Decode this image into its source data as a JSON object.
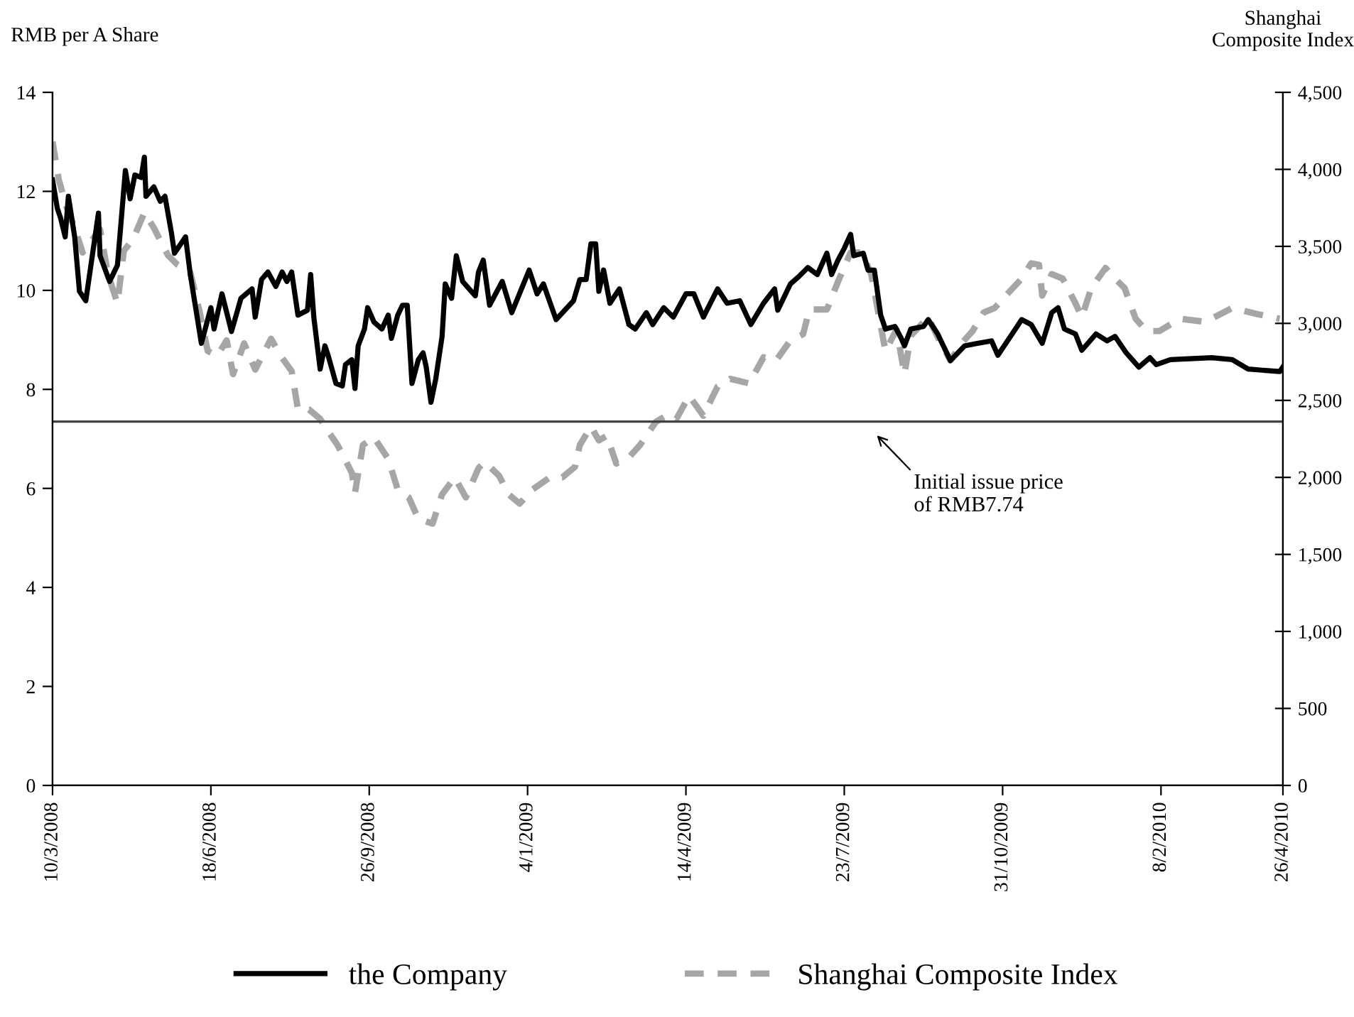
{
  "chart_data": {
    "type": "line",
    "ylabel": "RMB per A Share",
    "y2label": "Shanghai\nComposite Index",
    "xlim": [
      "2008-03-10",
      "2010-04-26"
    ],
    "xticks": [
      {
        "value": "2008-03-10",
        "label": "10/3/2008"
      },
      {
        "value": "2008-06-18",
        "label": "18/6/2008"
      },
      {
        "value": "2008-09-26",
        "label": "26/9/2008"
      },
      {
        "value": "2009-01-04",
        "label": "4/1/2009"
      },
      {
        "value": "2009-04-14",
        "label": "14/4/2009"
      },
      {
        "value": "2009-07-23",
        "label": "23/7/2009"
      },
      {
        "value": "2009-10-31",
        "label": "31/10/2009"
      },
      {
        "value": "2010-02-08",
        "label": "8/2/2010"
      },
      {
        "value": "2010-04-26",
        "label": "26/4/2010"
      }
    ],
    "ylim": [
      0,
      14
    ],
    "yticks": [
      0,
      2,
      4,
      6,
      8,
      10,
      12,
      14
    ],
    "y2lim": [
      0,
      4500
    ],
    "y2ticks": [
      0,
      500,
      {
        "value": 1000,
        "label": "1,000"
      },
      {
        "value": 1500,
        "label": "1,500"
      },
      {
        "value": 2000,
        "label": "2,000"
      },
      {
        "value": 2500,
        "label": "2,500"
      },
      {
        "value": 3000,
        "label": "3,000"
      },
      {
        "value": 3500,
        "label": "3,500"
      },
      {
        "value": 4000,
        "label": "4,000"
      },
      {
        "value": 4500,
        "label": "4,500"
      }
    ],
    "grid": false,
    "legend": "bottom",
    "ref_lines": [
      {
        "axis": "y",
        "value": 7.35,
        "color": "#404040",
        "line_style": "solid"
      }
    ],
    "annotations": [
      "Initial issue price\nof RMB7.74"
    ],
    "series": [
      {
        "name": "the Company",
        "color": "#000000",
        "line_style": "solid",
        "x": [
          "2008-03-10",
          "2008-03-13",
          "2008-03-15",
          "2008-03-18",
          "2008-03-20",
          "2008-03-24",
          "2008-03-27",
          "2008-03-31",
          "2008-04-08",
          "2008-04-09",
          "2008-04-15",
          "2008-04-20",
          "2008-04-25",
          "2008-04-28",
          "2008-05-01",
          "2008-05-05",
          "2008-05-07",
          "2008-05-08",
          "2008-05-13",
          "2008-05-17",
          "2008-05-20",
          "2008-05-24",
          "2008-05-26",
          "2008-06-02",
          "2008-06-05",
          "2008-06-12",
          "2008-06-18",
          "2008-06-20",
          "2008-06-25",
          "2008-07-01",
          "2008-07-07",
          "2008-07-14",
          "2008-07-16",
          "2008-07-20",
          "2008-07-24",
          "2008-07-29",
          "2008-08-02",
          "2008-08-05",
          "2008-08-08",
          "2008-08-12",
          "2008-08-18",
          "2008-08-20",
          "2008-08-22",
          "2008-08-26",
          "2008-08-29",
          "2008-08-31",
          "2008-09-05",
          "2008-09-09",
          "2008-09-11",
          "2008-09-15",
          "2008-09-17",
          "2008-09-19",
          "2008-09-23",
          "2008-09-25",
          "2008-09-29",
          "2008-10-04",
          "2008-10-08",
          "2008-10-10",
          "2008-10-14",
          "2008-10-17",
          "2008-10-20",
          "2008-10-23",
          "2008-10-27",
          "2008-10-30",
          "2008-11-01",
          "2008-11-04",
          "2008-11-07",
          "2008-11-11",
          "2008-11-13",
          "2008-11-17",
          "2008-11-20",
          "2008-11-24",
          "2008-12-02",
          "2008-12-04",
          "2008-12-07",
          "2008-12-11",
          "2008-12-19",
          "2008-12-25",
          "2009-01-05",
          "2009-01-10",
          "2009-01-14",
          "2009-01-22",
          "2009-02-02",
          "2009-02-06",
          "2009-02-10",
          "2009-02-13",
          "2009-02-16",
          "2009-02-18",
          "2009-02-21",
          "2009-02-25",
          "2009-03-03",
          "2009-03-09",
          "2009-03-13",
          "2009-03-20",
          "2009-03-24",
          "2009-03-31",
          "2009-04-06",
          "2009-04-14",
          "2009-04-19",
          "2009-04-25",
          "2009-05-04",
          "2009-05-10",
          "2009-05-18",
          "2009-05-25",
          "2009-06-02",
          "2009-06-09",
          "2009-06-11",
          "2009-06-19",
          "2009-06-24",
          "2009-06-30",
          "2009-07-06",
          "2009-07-12",
          "2009-07-15",
          "2009-07-19",
          "2009-07-23",
          "2009-07-27",
          "2009-07-29",
          "2009-08-04",
          "2009-08-07",
          "2009-08-11",
          "2009-08-15",
          "2009-08-18",
          "2009-08-24",
          "2009-08-28",
          "2009-08-30",
          "2009-09-03",
          "2009-09-11",
          "2009-09-14",
          "2009-09-20",
          "2009-09-28",
          "2009-10-07",
          "2009-10-15",
          "2009-10-24",
          "2009-10-28",
          "2009-11-02",
          "2009-11-06",
          "2009-11-12",
          "2009-11-18",
          "2009-11-25",
          "2009-12-01",
          "2009-12-05",
          "2009-12-09",
          "2009-12-16",
          "2009-12-20",
          "2009-12-29",
          "2010-01-05",
          "2010-01-10",
          "2010-01-17",
          "2010-01-25",
          "2010-02-01",
          "2010-02-05",
          "2010-02-14",
          "2010-03-12",
          "2010-03-25",
          "2010-04-04",
          "2010-04-24",
          "2010-04-26"
        ],
        "values": [
          12.23,
          11.66,
          11.47,
          11.08,
          11.9,
          11.08,
          9.98,
          9.79,
          11.56,
          10.7,
          10.18,
          10.51,
          12.42,
          11.85,
          12.33,
          12.28,
          12.69,
          11.9,
          12.09,
          11.8,
          11.9,
          11.18,
          10.75,
          11.08,
          10.32,
          8.93,
          9.65,
          9.22,
          9.93,
          9.17,
          9.84,
          10.03,
          9.46,
          10.22,
          10.37,
          10.08,
          10.37,
          10.18,
          10.37,
          9.5,
          9.6,
          10.32,
          9.46,
          8.41,
          8.88,
          8.69,
          8.12,
          8.07,
          8.5,
          8.6,
          8.02,
          8.88,
          9.22,
          9.65,
          9.36,
          9.22,
          9.5,
          9.03,
          9.5,
          9.7,
          9.7,
          8.12,
          8.6,
          8.74,
          8.45,
          7.74,
          8.21,
          9.07,
          10.13,
          9.84,
          10.7,
          10.18,
          9.89,
          10.37,
          10.61,
          9.7,
          10.18,
          9.55,
          10.41,
          9.93,
          10.13,
          9.41,
          9.79,
          10.22,
          10.22,
          10.94,
          10.94,
          9.98,
          10.41,
          9.74,
          10.03,
          9.31,
          9.22,
          9.55,
          9.31,
          9.65,
          9.46,
          9.93,
          9.93,
          9.46,
          10.03,
          9.74,
          9.79,
          9.31,
          9.74,
          10.03,
          9.6,
          10.13,
          10.27,
          10.46,
          10.32,
          10.75,
          10.32,
          10.61,
          10.85,
          11.13,
          10.7,
          10.75,
          10.41,
          10.41,
          9.5,
          9.22,
          9.27,
          9.03,
          8.88,
          9.22,
          9.27,
          9.41,
          9.12,
          8.58,
          8.88,
          8.93,
          8.98,
          8.69,
          8.93,
          9.12,
          9.41,
          9.31,
          8.93,
          9.55,
          9.65,
          9.22,
          9.12,
          8.79,
          9.12,
          8.98,
          9.07,
          8.74,
          8.45,
          8.64,
          8.5,
          8.6,
          8.64,
          8.6,
          8.41,
          8.36,
          8.45
        ]
      },
      {
        "name": "Shanghai Composite Index",
        "color": "#a6a6a6",
        "line_style": "dashed",
        "axis": "y2",
        "x": [
          "2008-03-10",
          "2008-03-14",
          "2008-03-19",
          "2008-03-24",
          "2008-03-29",
          "2008-04-09",
          "2008-04-14",
          "2008-04-20",
          "2008-04-24",
          "2008-04-30",
          "2008-05-07",
          "2008-05-13",
          "2008-05-22",
          "2008-05-28",
          "2008-06-05",
          "2008-06-11",
          "2008-06-16",
          "2008-06-22",
          "2008-06-28",
          "2008-07-02",
          "2008-07-09",
          "2008-07-16",
          "2008-07-26",
          "2008-08-01",
          "2008-08-08",
          "2008-08-12",
          "2008-08-19",
          "2008-08-26",
          "2008-08-31",
          "2008-09-06",
          "2008-09-15",
          "2008-09-17",
          "2008-09-22",
          "2008-09-29",
          "2008-10-08",
          "2008-10-14",
          "2008-10-21",
          "2008-10-27",
          "2008-11-05",
          "2008-11-11",
          "2008-11-19",
          "2008-11-26",
          "2008-12-04",
          "2008-12-08",
          "2008-12-17",
          "2008-12-23",
          "2008-12-30",
          "2009-01-07",
          "2009-01-18",
          "2009-01-26",
          "2009-02-03",
          "2009-02-06",
          "2009-02-13",
          "2009-02-18",
          "2009-02-23",
          "2009-03-01",
          "2009-03-09",
          "2009-03-16",
          "2009-03-26",
          "2009-04-03",
          "2009-04-08",
          "2009-04-16",
          "2009-04-25",
          "2009-05-04",
          "2009-05-12",
          "2009-05-24",
          "2009-06-02",
          "2009-06-10",
          "2009-06-19",
          "2009-06-27",
          "2009-07-01",
          "2009-07-12",
          "2009-07-19",
          "2009-07-27",
          "2009-08-03",
          "2009-08-09",
          "2009-08-14",
          "2009-08-18",
          "2009-08-25",
          "2009-08-30",
          "2009-09-03",
          "2009-09-14",
          "2009-09-21",
          "2009-09-28",
          "2009-10-05",
          "2009-10-12",
          "2009-10-19",
          "2009-10-26",
          "2009-11-02",
          "2009-11-12",
          "2009-11-18",
          "2009-11-23",
          "2009-11-25",
          "2009-12-01",
          "2009-12-08",
          "2009-12-16",
          "2009-12-20",
          "2009-12-26",
          "2010-01-04",
          "2010-01-10",
          "2010-01-16",
          "2010-01-23",
          "2010-01-30",
          "2010-02-07",
          "2010-02-20",
          "2010-03-08",
          "2010-03-25",
          "2010-04-10",
          "2010-04-24"
        ],
        "values": [
          4180,
          3930,
          3750,
          3620,
          3460,
          3610,
          3320,
          3130,
          3470,
          3550,
          3720,
          3620,
          3440,
          3380,
          3330,
          3070,
          2820,
          2790,
          2890,
          2670,
          2870,
          2700,
          2900,
          2790,
          2690,
          2440,
          2440,
          2380,
          2300,
          2210,
          2030,
          1900,
          2210,
          2260,
          2120,
          1920,
          1870,
          1730,
          1700,
          1890,
          2000,
          1870,
          2060,
          2100,
          2010,
          1890,
          1830,
          1920,
          2000,
          2000,
          2070,
          2210,
          2330,
          2240,
          2270,
          2090,
          2130,
          2210,
          2360,
          2410,
          2380,
          2530,
          2400,
          2590,
          2640,
          2610,
          2780,
          2760,
          2890,
          2930,
          3090,
          3090,
          3270,
          3460,
          3460,
          3320,
          3040,
          2820,
          2960,
          2670,
          2920,
          3040,
          2890,
          2760,
          2870,
          2950,
          3070,
          3100,
          3180,
          3290,
          3390,
          3380,
          3180,
          3320,
          3290,
          3130,
          3040,
          3230,
          3360,
          3290,
          3230,
          3030,
          2950,
          2950,
          3030,
          3010,
          3100,
          3060,
          3030
        ]
      }
    ]
  }
}
